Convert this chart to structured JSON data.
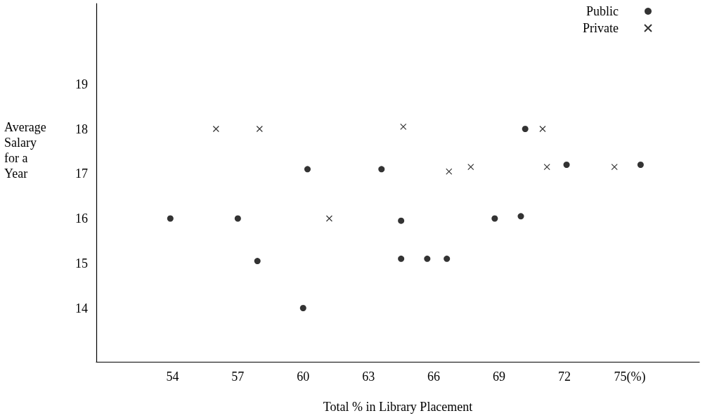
{
  "chart_data": {
    "type": "scatter",
    "xlabel": "Total % in Library Placement",
    "ylabel": "Average Salary for a Year",
    "xlim": [
      50.5,
      78.2
    ],
    "xticks": [
      54,
      57,
      60,
      63,
      66,
      69,
      72,
      {
        "value": 75,
        "label": "75(%)"
      }
    ],
    "ylim": [
      12.8,
      20.8
    ],
    "yticks": [
      14,
      15,
      16,
      17,
      18,
      19
    ],
    "grid": false,
    "legend": "top right",
    "series": [
      {
        "name": "Public",
        "color": "#000000",
        "marker": "circle",
        "x": [
          53.9,
          57.0,
          57.9,
          60.0,
          60.2,
          63.6,
          64.5,
          64.5,
          65.7,
          66.6,
          68.8,
          70.0,
          70.2,
          72.1,
          75.5
        ],
        "values": [
          16,
          16,
          15.05,
          14.0,
          17.1,
          17.1,
          15.1,
          15.95,
          15.1,
          15.1,
          16,
          16.05,
          18,
          17.2,
          17.2
        ]
      },
      {
        "name": "Private",
        "color": "#000000",
        "marker": "cross",
        "x": [
          56.0,
          58.0,
          64.6,
          61.2,
          66.7,
          67.7,
          71.0,
          71.2,
          74.3
        ],
        "values": [
          18,
          18,
          18.05,
          16,
          17.05,
          17.15,
          18,
          17.15,
          17.15
        ]
      }
    ]
  }
}
